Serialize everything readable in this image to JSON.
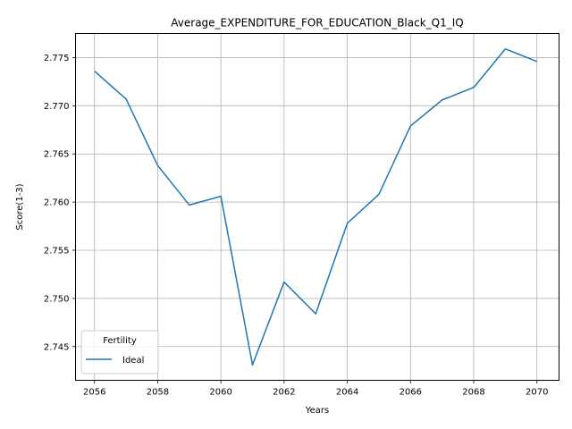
{
  "chart_data": {
    "type": "line",
    "title": "Average_EXPENDITURE_FOR_EDUCATION_Black_Q1_IQ",
    "xlabel": "Years",
    "ylabel": "Score(1-3)",
    "x": [
      2056,
      2057,
      2058,
      2059,
      2060,
      2061,
      2062,
      2063,
      2064,
      2065,
      2066,
      2067,
      2068,
      2069,
      2070
    ],
    "series": [
      {
        "name": "Ideal",
        "color": "#1f77b4",
        "values": [
          2.7736,
          2.7707,
          2.7638,
          2.7597,
          2.7606,
          2.7431,
          2.7517,
          2.7484,
          2.7578,
          2.7608,
          2.7679,
          2.7706,
          2.7719,
          2.7759,
          2.7746
        ]
      }
    ],
    "xlim": [
      2055.4,
      2070.7
    ],
    "ylim": [
      2.7415,
      2.7775
    ],
    "xticks": [
      "2056",
      "2058",
      "2060",
      "2062",
      "2064",
      "2066",
      "2068",
      "2070"
    ],
    "yticks": [
      "2.745",
      "2.750",
      "2.755",
      "2.760",
      "2.765",
      "2.770",
      "2.775"
    ],
    "grid": true,
    "legend": {
      "title": "Fertility",
      "placement": "lower-left"
    }
  }
}
